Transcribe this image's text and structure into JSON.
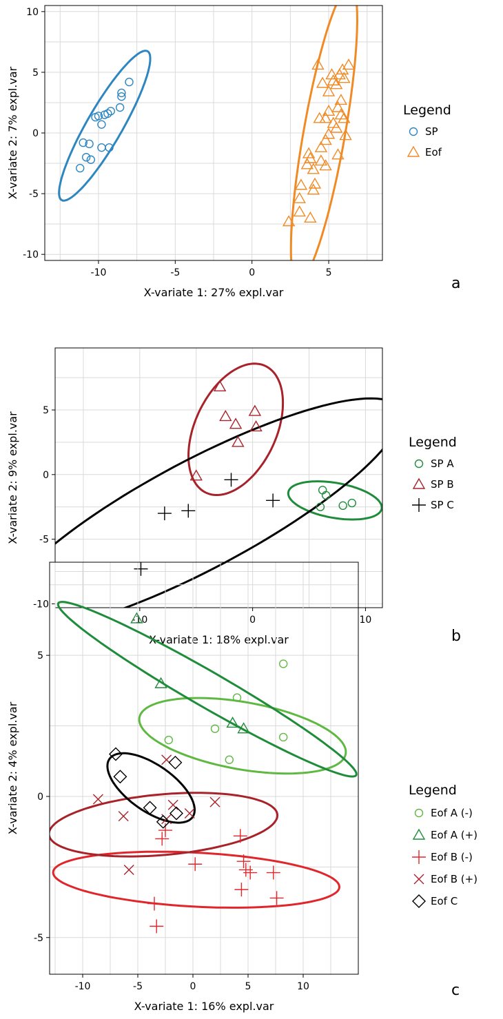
{
  "chart_data": [
    {
      "type": "scatter",
      "panel_label": "a",
      "xlabel": "X-variate 1: 27% expl.var",
      "ylabel": "X-variate 2: 7% expl.var",
      "xlim": [
        -13.5,
        8.5
      ],
      "ylim": [
        -10.5,
        10.5
      ],
      "xticks": [
        -10,
        -5,
        0,
        5
      ],
      "yticks": [
        -10,
        -5,
        0,
        5,
        10
      ],
      "legend": {
        "title": "Legend",
        "placement": "right"
      },
      "series": [
        {
          "name": "SP",
          "color": "#2e86c1",
          "marker": "circle",
          "ellipse": {
            "cx": -9.6,
            "cy": 0.6,
            "rx": 5.6,
            "ry": 1.15,
            "angle_deg": 60
          },
          "points": [
            [
              -8.0,
              4.2
            ],
            [
              -8.5,
              3.3
            ],
            [
              -8.5,
              3.0
            ],
            [
              -8.6,
              2.1
            ],
            [
              -9.2,
              1.8
            ],
            [
              -9.4,
              1.6
            ],
            [
              -9.6,
              1.5
            ],
            [
              -10.0,
              1.4
            ],
            [
              -10.2,
              1.3
            ],
            [
              -9.8,
              0.7
            ],
            [
              -11.0,
              -0.8
            ],
            [
              -10.6,
              -0.9
            ],
            [
              -9.8,
              -1.2
            ],
            [
              -9.3,
              -1.2
            ],
            [
              -10.8,
              -2.0
            ],
            [
              -10.5,
              -2.2
            ],
            [
              -11.2,
              -2.9
            ]
          ]
        },
        {
          "name": "Eof",
          "color": "#f08a24",
          "marker": "triangle",
          "ellipse": {
            "cx": 4.7,
            "cy": -0.1,
            "rx": 9.8,
            "ry": 1.35,
            "angle_deg": 80
          },
          "points": [
            [
              4.3,
              5.6
            ],
            [
              6.3,
              5.6
            ],
            [
              5.2,
              4.8
            ],
            [
              5.7,
              4.8
            ],
            [
              5.9,
              5.2
            ],
            [
              6.0,
              4.5
            ],
            [
              5.3,
              4.3
            ],
            [
              5.5,
              4.0
            ],
            [
              4.6,
              4.1
            ],
            [
              5.0,
              3.4
            ],
            [
              5.8,
              2.7
            ],
            [
              5.6,
              2.1
            ],
            [
              5.0,
              1.8
            ],
            [
              4.4,
              1.2
            ],
            [
              4.8,
              1.2
            ],
            [
              5.8,
              1.5
            ],
            [
              6.0,
              1.2
            ],
            [
              5.3,
              0.8
            ],
            [
              5.5,
              0.4
            ],
            [
              5.0,
              -0.1
            ],
            [
              6.1,
              -0.2
            ],
            [
              4.8,
              -0.6
            ],
            [
              4.5,
              -1.2
            ],
            [
              5.6,
              -1.8
            ],
            [
              3.7,
              -1.7
            ],
            [
              3.8,
              -2.1
            ],
            [
              4.5,
              -2.3
            ],
            [
              4.8,
              -2.7
            ],
            [
              3.6,
              -2.6
            ],
            [
              4.0,
              -3.0
            ],
            [
              4.1,
              -4.2
            ],
            [
              3.2,
              -4.3
            ],
            [
              4.0,
              -4.7
            ],
            [
              3.1,
              -5.4
            ],
            [
              3.1,
              -6.5
            ],
            [
              3.8,
              -7.0
            ],
            [
              2.4,
              -7.3
            ]
          ]
        }
      ]
    },
    {
      "type": "scatter",
      "panel_label": "b",
      "xlabel": "X-variate 1: 18% expl.var",
      "ylabel": "X-variate 2: 9% expl.var",
      "xlim": [
        -17.5,
        11.5
      ],
      "ylim": [
        -10.3,
        9.8
      ],
      "xticks": [
        -10,
        0,
        10
      ],
      "yticks": [
        -10,
        -5,
        0,
        5
      ],
      "legend": {
        "title": "Legend",
        "placement": "right"
      },
      "series": [
        {
          "name": "SP  A",
          "color": "#1e8c3a",
          "marker": "circle",
          "ellipse": {
            "cx": 7.3,
            "cy": -2.0,
            "rx": 4.2,
            "ry": 1.55,
            "angle_deg": -10
          },
          "points": [
            [
              6.2,
              -1.2
            ],
            [
              6.5,
              -1.6
            ],
            [
              6.0,
              -2.5
            ],
            [
              8.0,
              -2.4
            ],
            [
              8.8,
              -2.2
            ]
          ]
        },
        {
          "name": "SP  B",
          "color": "#a8222a",
          "marker": "triangle",
          "ellipse": {
            "cx": -1.5,
            "cy": 3.5,
            "rx": 6.2,
            "ry": 3.6,
            "angle_deg": 65
          },
          "points": [
            [
              -2.9,
              6.8
            ],
            [
              -2.4,
              4.5
            ],
            [
              0.2,
              4.9
            ],
            [
              -1.5,
              3.9
            ],
            [
              0.3,
              3.7
            ],
            [
              -1.3,
              2.5
            ],
            [
              -5.0,
              -0.1
            ]
          ]
        },
        {
          "name": "SP  C",
          "color": "#000000",
          "marker": "plus",
          "ellipse": {
            "cx": -4.7,
            "cy": -3.1,
            "rx": 20.0,
            "ry": 4.8,
            "angle_deg": 28
          },
          "points": [
            [
              -1.9,
              -0.4
            ],
            [
              1.8,
              -2.0
            ],
            [
              -7.8,
              -3.0
            ],
            [
              -5.7,
              -2.8
            ],
            [
              -9.9,
              -7.3
            ]
          ]
        }
      ]
    },
    {
      "type": "scatter",
      "panel_label": "c",
      "xlabel": "X-variate 1: 16% expl.var",
      "ylabel": "X-variate 2: 4% expl.var",
      "xlim": [
        -13,
        15
      ],
      "ylim": [
        -6.3,
        8.3
      ],
      "xticks": [
        -10,
        -5,
        0,
        5,
        10
      ],
      "yticks": [
        -5,
        0,
        5
      ],
      "legend": {
        "title": "Legend",
        "placement": "right"
      },
      "series": [
        {
          "name": "Eof A (-)",
          "color": "#5fb842",
          "marker": "circle",
          "ellipse": {
            "cx": 4.5,
            "cy": 2.15,
            "rx": 9.5,
            "ry": 3.05,
            "angle_deg": -10
          },
          "points": [
            [
              8.2,
              4.7
            ],
            [
              4.0,
              3.5
            ],
            [
              2.0,
              2.4
            ],
            [
              8.2,
              2.1
            ],
            [
              3.3,
              1.3
            ],
            [
              -2.2,
              2.0
            ]
          ]
        },
        {
          "name": "Eof A (+)",
          "color": "#1e8c3a",
          "marker": "triangle",
          "ellipse": {
            "cx": 1.3,
            "cy": 3.8,
            "rx": 15.6,
            "ry": 1.6,
            "angle_deg": -30
          },
          "points": [
            [
              -5.1,
              6.3
            ],
            [
              -2.9,
              4.0
            ],
            [
              3.6,
              2.6
            ],
            [
              4.6,
              2.4
            ]
          ]
        },
        {
          "name": "Eof B (-)",
          "color": "#e0262a",
          "marker": "plus",
          "ellipse": {
            "cx": 0.3,
            "cy": -2.95,
            "rx": 13.0,
            "ry": 2.45,
            "angle_deg": -3
          },
          "points": [
            [
              4.3,
              -1.4
            ],
            [
              4.6,
              -2.3
            ],
            [
              4.8,
              -2.6
            ],
            [
              5.2,
              -2.7
            ],
            [
              7.3,
              -2.7
            ],
            [
              7.6,
              -3.6
            ],
            [
              4.4,
              -3.3
            ],
            [
              -2.5,
              -1.2
            ],
            [
              -2.8,
              -1.5
            ],
            [
              0.2,
              -2.4
            ],
            [
              -3.5,
              -3.8
            ],
            [
              -3.3,
              -4.6
            ]
          ]
        },
        {
          "name": "Eof B (+)",
          "color": "#a8222a",
          "marker": "cross",
          "ellipse": {
            "cx": -2.7,
            "cy": -1.0,
            "rx": 10.4,
            "ry": 2.75,
            "angle_deg": 5
          },
          "points": [
            [
              -8.6,
              -0.1
            ],
            [
              -6.3,
              -0.7
            ],
            [
              -2.4,
              1.3
            ],
            [
              -1.8,
              -0.3
            ],
            [
              -0.3,
              -0.6
            ],
            [
              2.0,
              -0.2
            ],
            [
              -2.4,
              -0.8
            ],
            [
              -5.8,
              -2.6
            ]
          ]
        },
        {
          "name": "Eof C",
          "color": "#000000",
          "marker": "diamond",
          "ellipse": {
            "cx": -3.8,
            "cy": 0.3,
            "rx": 4.6,
            "ry": 2.1,
            "angle_deg": -35
          },
          "points": [
            [
              -7.0,
              1.5
            ],
            [
              -6.6,
              0.7
            ],
            [
              -1.6,
              1.2
            ],
            [
              -3.9,
              -0.4
            ],
            [
              -1.5,
              -0.6
            ],
            [
              -2.7,
              -0.9
            ]
          ]
        }
      ]
    }
  ]
}
